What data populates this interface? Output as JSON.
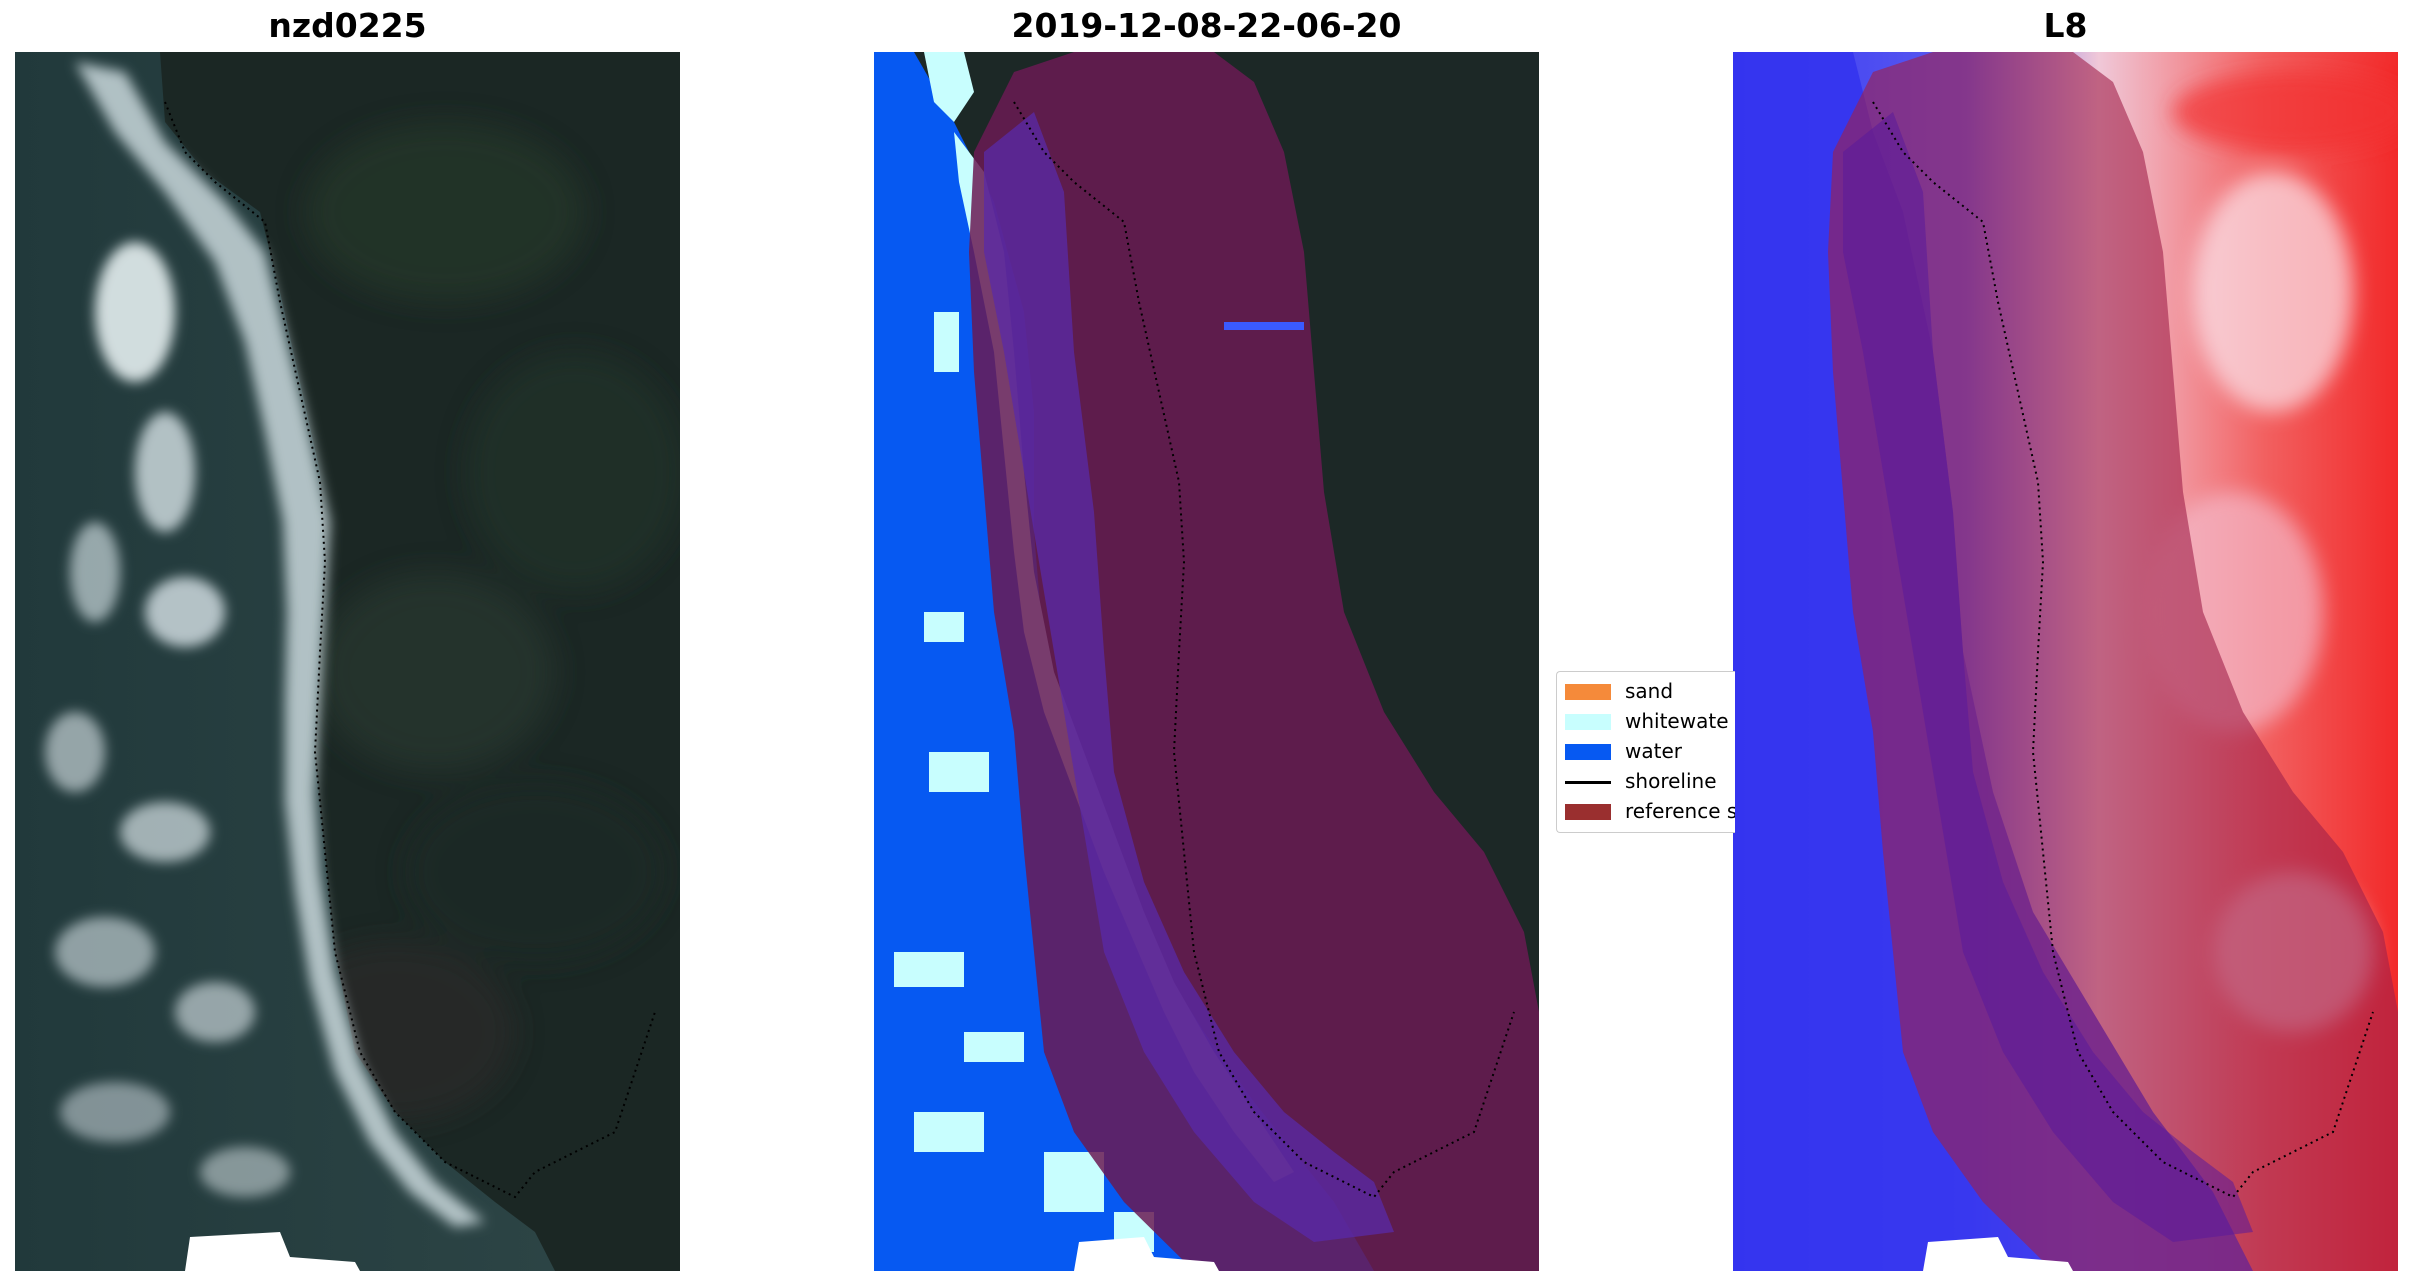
{
  "titles": {
    "left": "nzd0225",
    "middle": "2019-12-08-22-06-20",
    "right": "L8"
  },
  "legend": {
    "items": [
      {
        "label": "sand",
        "color": "#f58a3a",
        "kind": "patch"
      },
      {
        "label": "whitewate",
        "color": "#c8fefe",
        "kind": "patch"
      },
      {
        "label": "water",
        "color": "#0659f2",
        "kind": "patch"
      },
      {
        "label": "shoreline",
        "color": "#000000",
        "kind": "line"
      },
      {
        "label": "reference s",
        "color": "#9a2f2f",
        "kind": "patch"
      }
    ]
  },
  "colors": {
    "land": "#1d2a26",
    "sea": "#1f3a3c",
    "foam": "#d9e6ea",
    "water_class": "#0659f2",
    "whitewater_class": "#c8fefe",
    "reference_buffer": "#7a1a3a",
    "index_water": "#2a2af0",
    "index_land": "#f03030"
  }
}
